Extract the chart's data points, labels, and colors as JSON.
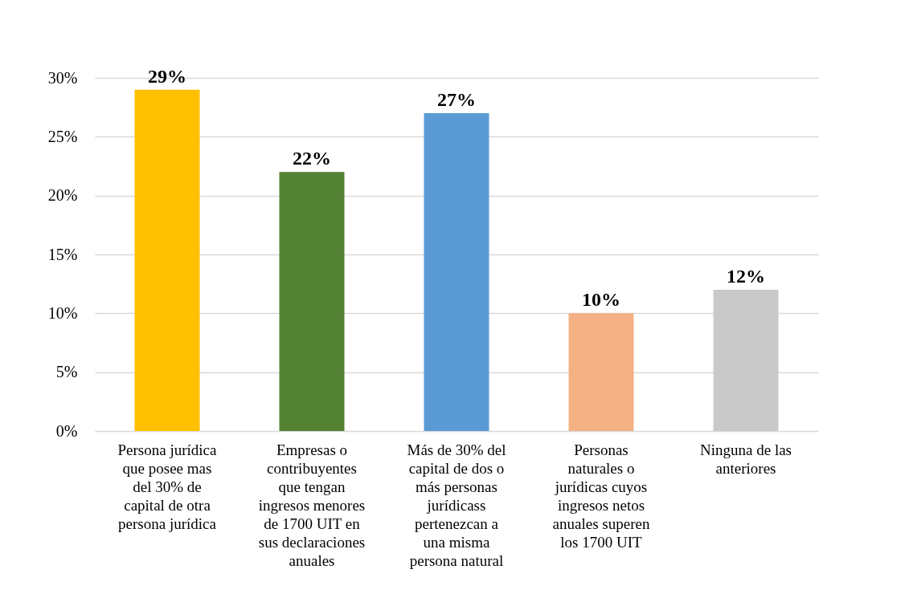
{
  "chart_data": {
    "type": "bar",
    "categories": [
      "Persona jurídica que posee mas del 30% de capital de otra persona jurídica",
      "Empresas o contribuyentes que tengan ingresos menores de 1700 UIT en sus declaraciones anuales",
      "Más de 30% del capital de dos o más personas jurídicass pertenezcan a una misma persona natural",
      "Personas naturales o jurídicas cuyos ingresos netos anuales superen los 1700 UIT",
      "Ninguna de las anteriores"
    ],
    "values": [
      29,
      22,
      27,
      10,
      12
    ],
    "colors": [
      "#ffc000",
      "#548235",
      "#5b9bd5",
      "#f4b183",
      "#c9c9c9"
    ],
    "value_labels": [
      "29%",
      "22%",
      "27%",
      "10%",
      "12%"
    ],
    "ylim": [
      0,
      30
    ],
    "yticks": [
      {
        "value": 0,
        "label": "0%"
      },
      {
        "value": 5,
        "label": "5%"
      },
      {
        "value": 10,
        "label": "10%"
      },
      {
        "value": 15,
        "label": "15%"
      },
      {
        "value": 20,
        "label": "20%"
      },
      {
        "value": 25,
        "label": "25%"
      },
      {
        "value": 30,
        "label": "30%"
      }
    ],
    "grid": "y"
  }
}
